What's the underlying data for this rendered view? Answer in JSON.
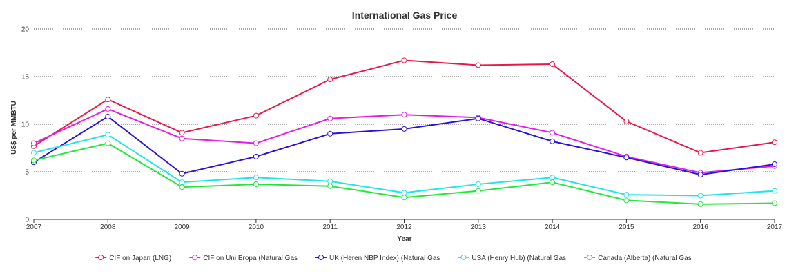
{
  "chart_data": {
    "type": "line",
    "title": "International Gas Price",
    "xlabel": "Year",
    "ylabel": "US$ per MMBTU",
    "x": [
      "2007",
      "2008",
      "2009",
      "2010",
      "2011",
      "2012",
      "2013",
      "2014",
      "2015",
      "2016",
      "2017"
    ],
    "yticks": [
      0,
      5,
      10,
      15,
      20
    ],
    "ylim": [
      0,
      20
    ],
    "grid": "horizontal dotted",
    "legend_position": "bottom",
    "series": [
      {
        "name": "CIF on Japan (LNG)",
        "color": "#e8194a",
        "values": [
          7.7,
          12.6,
          9.1,
          10.9,
          14.7,
          16.7,
          16.2,
          16.3,
          10.3,
          7.0,
          8.1
        ]
      },
      {
        "name": "CIF on Uni Eropa (Natural Gas",
        "color": "#e31ee3",
        "values": [
          8.0,
          11.6,
          8.5,
          8.0,
          10.6,
          11.0,
          10.7,
          9.1,
          6.6,
          4.9,
          5.6
        ]
      },
      {
        "name": "UK (Heren NBP Index) (Natural Gas",
        "color": "#2b12d9",
        "values": [
          6.0,
          10.8,
          4.8,
          6.6,
          9.0,
          9.5,
          10.6,
          8.2,
          6.5,
          4.7,
          5.8
        ]
      },
      {
        "name": "USA (Henry Hub) (Natural Gas",
        "color": "#21e3e8",
        "values": [
          7.0,
          8.9,
          3.9,
          4.4,
          4.0,
          2.8,
          3.7,
          4.4,
          2.6,
          2.5,
          3.0
        ]
      },
      {
        "name": "Canada (Alberta) (Natural Gas",
        "color": "#22e83a",
        "values": [
          6.2,
          8.0,
          3.4,
          3.7,
          3.5,
          2.3,
          3.0,
          3.9,
          2.0,
          1.6,
          1.7
        ]
      }
    ]
  }
}
